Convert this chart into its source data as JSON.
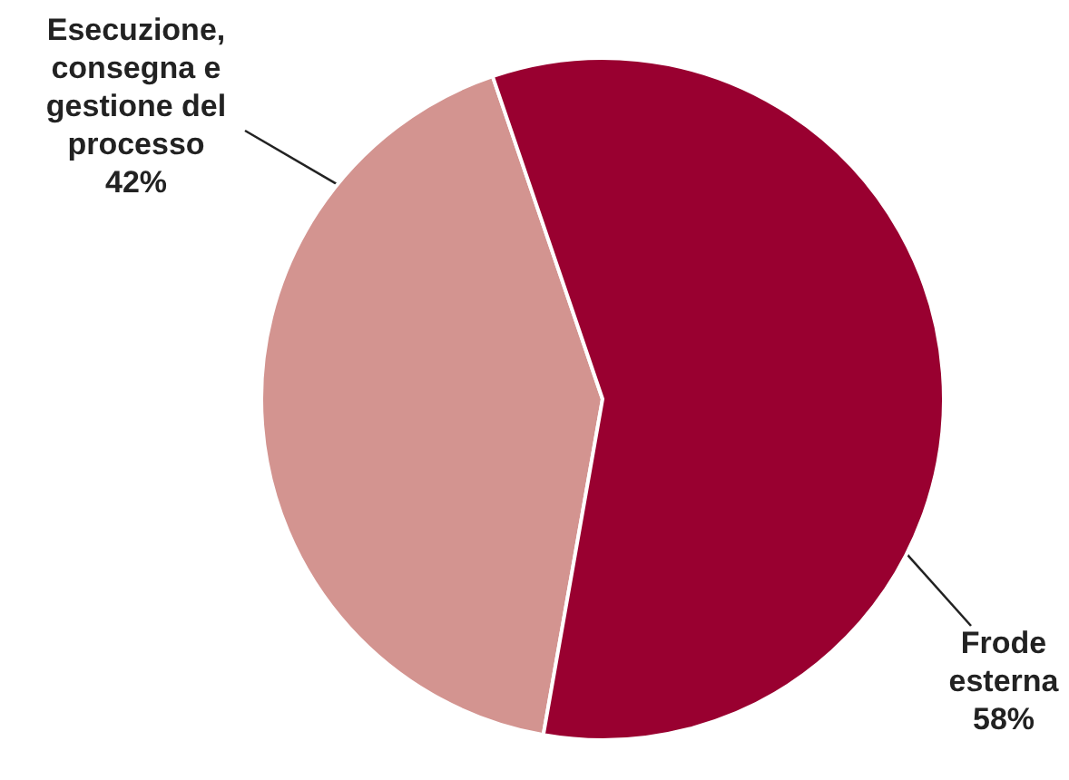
{
  "chart_data": {
    "type": "pie",
    "categories": [
      "Esecuzione, consegna e gestione del processo",
      "Frode esterna"
    ],
    "values": [
      42,
      58
    ],
    "colors": [
      "#d39490",
      "#990030"
    ],
    "value_labels": [
      "42%",
      "58%"
    ],
    "legend": false
  }
}
